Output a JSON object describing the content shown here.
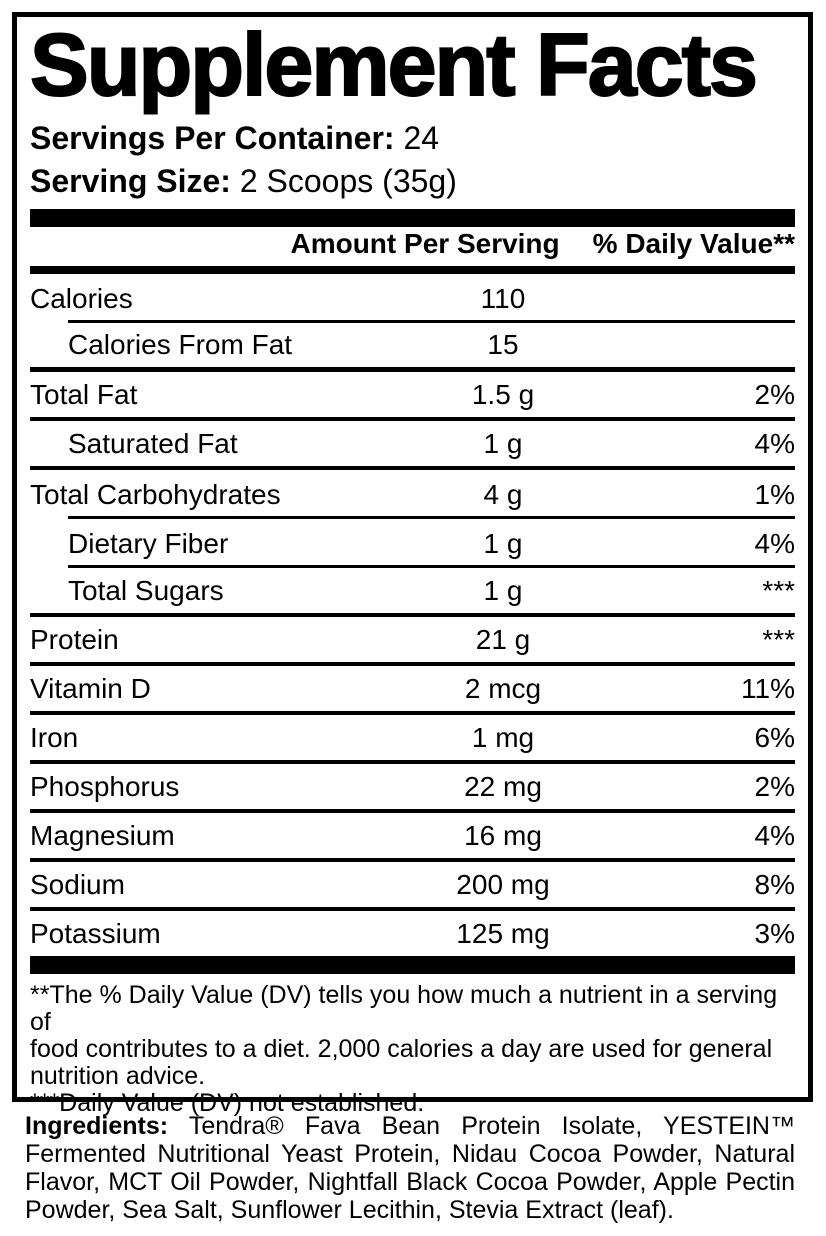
{
  "title": "Supplement Facts",
  "servings": {
    "label": "Servings Per Container:",
    "value": " 24"
  },
  "serving_size": {
    "label": "Serving Size:",
    "value": " 2 Scoops (35g)"
  },
  "table": {
    "amount_header": "Amount Per Serving",
    "dv_header": "% Daily Value**",
    "rows": [
      {
        "label": "Calories",
        "amount": "110",
        "dv": ""
      },
      {
        "label": "Calories From Fat",
        "amount": "15",
        "dv": ""
      },
      {
        "label": "Total Fat",
        "amount": "1.5 g",
        "dv": "2%"
      },
      {
        "label": "Saturated Fat",
        "amount": "1 g",
        "dv": "4%"
      },
      {
        "label": "Total Carbohydrates",
        "amount": "4 g",
        "dv": "1%"
      },
      {
        "label": "Dietary Fiber",
        "amount": "1 g",
        "dv": "4%"
      },
      {
        "label": "Total Sugars",
        "amount": "1 g",
        "dv": "***"
      },
      {
        "label": "Protein",
        "amount": "21 g",
        "dv": "***"
      },
      {
        "label": "Vitamin D",
        "amount": "2 mcg",
        "dv": "11%"
      },
      {
        "label": "Iron",
        "amount": "1 mg",
        "dv": "6%"
      },
      {
        "label": "Phosphorus",
        "amount": "22 mg",
        "dv": "2%"
      },
      {
        "label": "Magnesium",
        "amount": "16 mg",
        "dv": "4%"
      },
      {
        "label": "Sodium",
        "amount": "200 mg",
        "dv": "8%"
      },
      {
        "label": "Potassium",
        "amount": "125 mg",
        "dv": "3%"
      }
    ]
  },
  "footnote": {
    "lines": [
      "**The % Daily Value (DV) tells you how much a nutrient in a serving of",
      "food contributes to a diet. 2,000 calories a day are used for general",
      "nutrition advice.",
      "***Daily Value (DV) not established."
    ]
  },
  "ingredients": {
    "label": "Ingredients:",
    "line1_rest": " Tendra® Fava Bean Protein Isolate, YESTEIN™",
    "lines": [
      "Fermented Nutritional Yeast Protein, Nidau Cocoa Powder, Natural",
      "Flavor, MCT Oil Powder, Nightfall Black Cocoa Powder, Apple Pectin",
      "Powder, Sea Salt, Sunflower Lecithin, Stevia Extract (leaf)."
    ]
  },
  "colors": {
    "ink": "#000000",
    "background": "#ffffff"
  }
}
